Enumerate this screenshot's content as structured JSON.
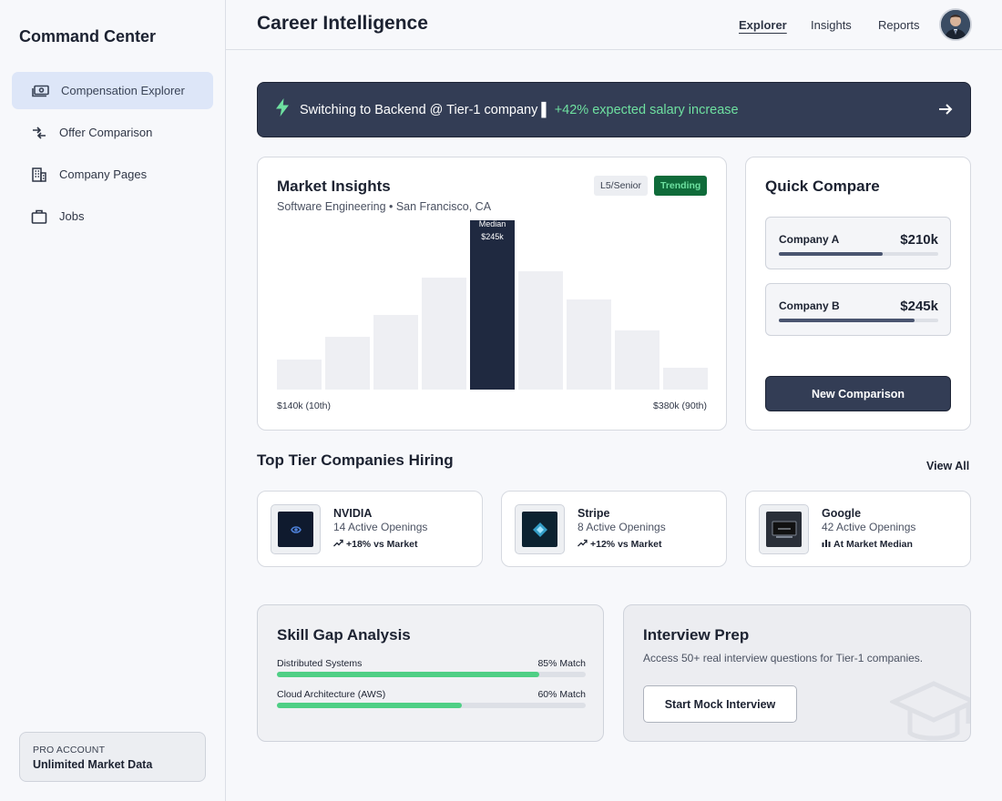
{
  "sidebar": {
    "brand": "Command Center",
    "items": [
      {
        "label": "Compensation Explorer",
        "icon": "money-icon",
        "active": true
      },
      {
        "label": "Offer Comparison",
        "icon": "compare-arrows-icon",
        "active": false
      },
      {
        "label": "Company Pages",
        "icon": "building-icon",
        "active": false
      },
      {
        "label": "Jobs",
        "icon": "briefcase-icon",
        "active": false
      }
    ],
    "account": {
      "tier": "PRO ACCOUNT",
      "feature": "Unlimited Market Data"
    }
  },
  "header": {
    "title": "Career Intelligence",
    "nav": [
      {
        "label": "Explorer",
        "active": true
      },
      {
        "label": "Insights",
        "active": false
      },
      {
        "label": "Reports",
        "active": false
      }
    ],
    "avatar_icon": "user-avatar"
  },
  "banner": {
    "icon": "lightning-icon",
    "text": "Switching to Backend @ Tier-1 company",
    "separator": "▌",
    "highlight": "+42% expected salary increase",
    "highlight_color": "#6ee0a0",
    "arrow_icon": "arrow-right-icon"
  },
  "market": {
    "title": "Market Insights",
    "subtitle": "Software Engineering • San Francisco, CA",
    "level_tag": "L5/Senior",
    "trend_tag": "Trending",
    "median_label": "Median",
    "median_value": "$245k",
    "x_min_label": "$140k (10th)",
    "x_max_label": "$380k (90th)"
  },
  "chart_data": {
    "type": "bar",
    "title": "Market Insights",
    "categories": [
      "b1",
      "b2",
      "b3",
      "b4",
      "b5",
      "b6",
      "b7",
      "b8",
      "b9"
    ],
    "values": [
      18,
      31,
      44,
      66,
      100,
      70,
      53,
      35,
      13
    ],
    "highlight_index": 4,
    "xlabel": "",
    "ylabel": "",
    "ylim": [
      0,
      100
    ],
    "tick_labels": [
      "$140k (10th)",
      "$380k (90th)"
    ],
    "grid": false,
    "annotations": [
      {
        "text": "Median $245k",
        "category_index": 4
      }
    ]
  },
  "compare": {
    "title": "Quick Compare",
    "items": [
      {
        "name": "Company A",
        "value": "$210k",
        "fraction": 0.65
      },
      {
        "name": "Company B",
        "value": "$245k",
        "fraction": 0.85
      }
    ],
    "button": "New Comparison"
  },
  "companies": {
    "title": "Top Tier Companies Hiring",
    "view_all": "View All",
    "items": [
      {
        "name": "NVIDIA",
        "openings": "14 Active Openings",
        "delta": "+18% vs Market",
        "delta_icon": "trend-up-icon"
      },
      {
        "name": "Stripe",
        "openings": "8 Active Openings",
        "delta": "+12% vs Market",
        "delta_icon": "trend-up-icon"
      },
      {
        "name": "Google",
        "openings": "42 Active Openings",
        "delta": "At Market Median",
        "delta_icon": "bar-chart-icon"
      }
    ]
  },
  "skills": {
    "title": "Skill Gap Analysis",
    "items": [
      {
        "label": "Distributed Systems",
        "match": "85% Match",
        "fraction": 0.85
      },
      {
        "label": "Cloud Architecture (AWS)",
        "match": "60% Match",
        "fraction": 0.6
      }
    ],
    "bar_color": "#4fcf85"
  },
  "interview": {
    "title": "Interview Prep",
    "description": "Access 50+ real interview questions for Tier-1 companies.",
    "button": "Start Mock Interview",
    "decor_icon": "graduation-cap-icon"
  }
}
